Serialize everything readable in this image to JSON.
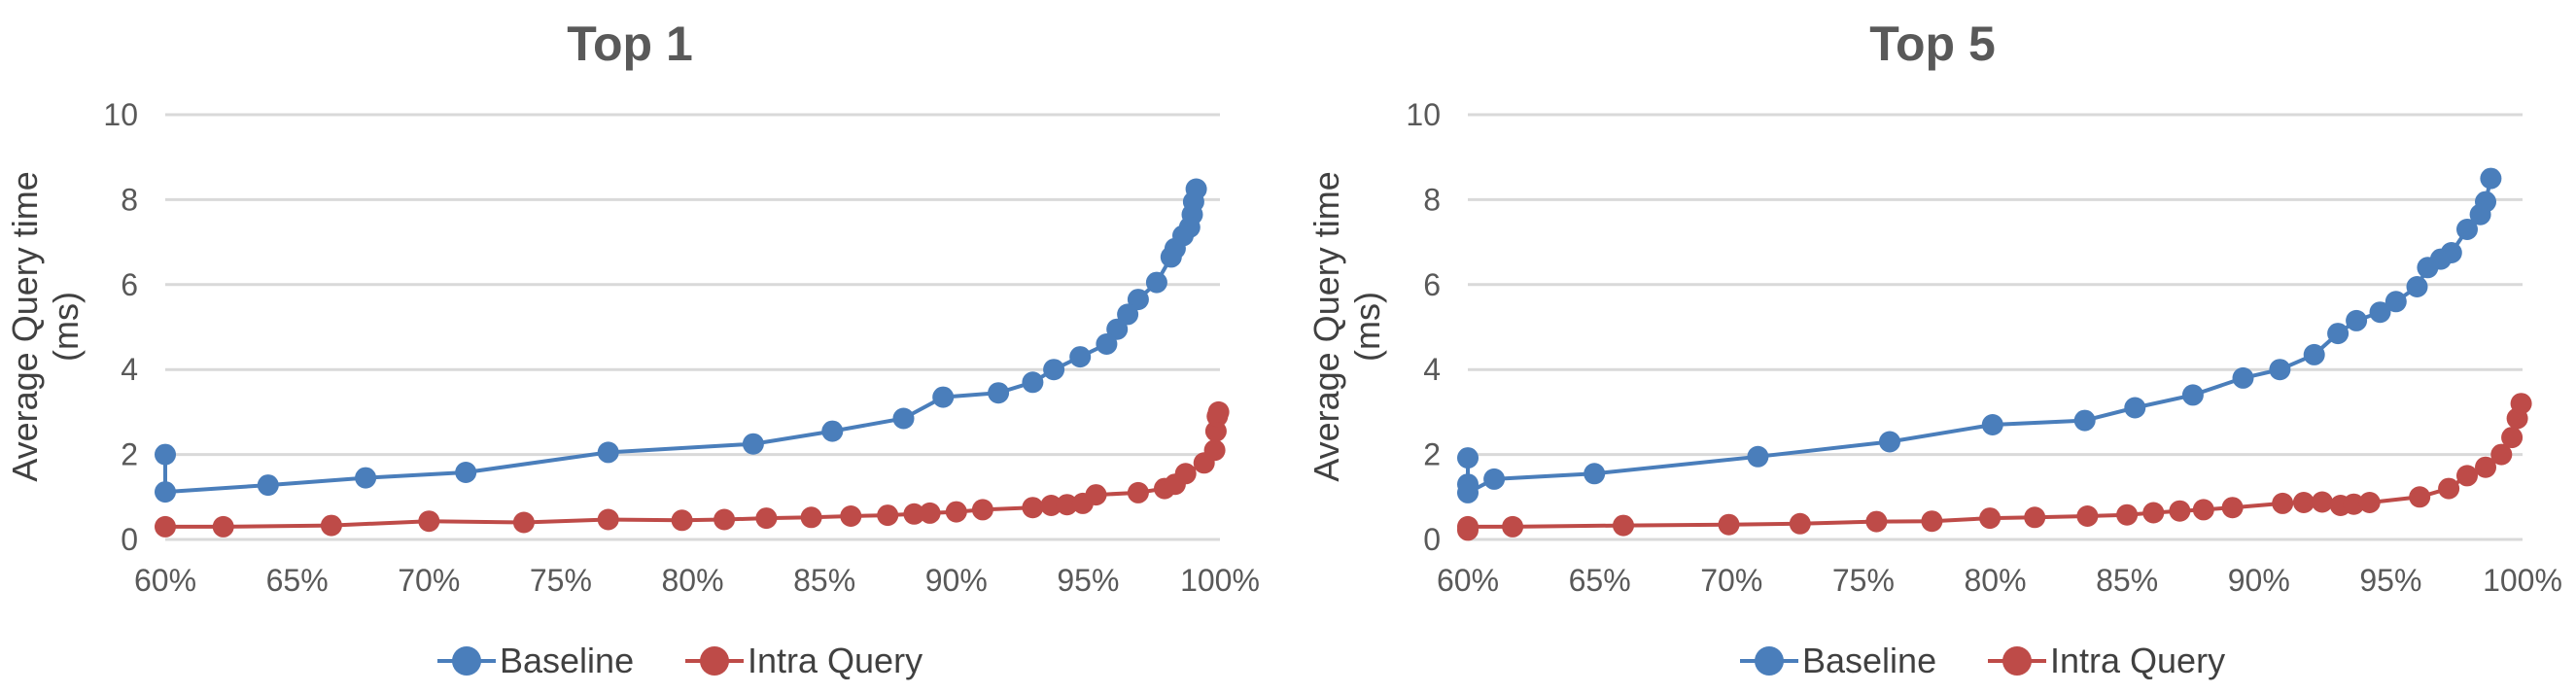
{
  "chart_data": [
    {
      "type": "line",
      "title": "Top 1",
      "xlabel": "",
      "ylabel": "Average Query time\n(ms)",
      "xlim": [
        60,
        100
      ],
      "ylim": [
        0,
        10
      ],
      "x_tick_labels": [
        "60%",
        "65%",
        "70%",
        "75%",
        "80%",
        "85%",
        "90%",
        "95%",
        "100%"
      ],
      "y_tick_labels": [
        "0",
        "2",
        "4",
        "6",
        "8",
        "10"
      ],
      "grid": true,
      "legend_position": "bottom",
      "series": [
        {
          "name": "Baseline",
          "color": "#4a7ebb",
          "points": [
            [
              99.1,
              8.25
            ],
            [
              99.0,
              7.95
            ],
            [
              98.95,
              7.65
            ],
            [
              98.85,
              7.35
            ],
            [
              98.6,
              7.15
            ],
            [
              98.3,
              6.85
            ],
            [
              98.15,
              6.65
            ],
            [
              97.6,
              6.05
            ],
            [
              96.9,
              5.65
            ],
            [
              96.5,
              5.3
            ],
            [
              96.1,
              4.95
            ],
            [
              95.7,
              4.6
            ],
            [
              94.7,
              4.3
            ],
            [
              93.7,
              4.0
            ],
            [
              92.9,
              3.7
            ],
            [
              91.6,
              3.45
            ],
            [
              89.5,
              3.35
            ],
            [
              88.0,
              2.85
            ],
            [
              85.3,
              2.55
            ],
            [
              82.3,
              2.25
            ],
            [
              76.8,
              2.05
            ],
            [
              71.4,
              1.58
            ],
            [
              67.6,
              1.45
            ],
            [
              63.9,
              1.28
            ],
            [
              60.0,
              1.12
            ],
            [
              60.0,
              2.0
            ]
          ]
        },
        {
          "name": "Intra Query",
          "color": "#be4b48",
          "points": [
            [
              60.0,
              0.3
            ],
            [
              62.2,
              0.3
            ],
            [
              66.3,
              0.33
            ],
            [
              70.0,
              0.43
            ],
            [
              73.6,
              0.4
            ],
            [
              76.8,
              0.47
            ],
            [
              79.6,
              0.45
            ],
            [
              81.2,
              0.47
            ],
            [
              82.8,
              0.5
            ],
            [
              84.5,
              0.52
            ],
            [
              86.0,
              0.55
            ],
            [
              87.4,
              0.57
            ],
            [
              88.4,
              0.6
            ],
            [
              89.0,
              0.62
            ],
            [
              90.0,
              0.65
            ],
            [
              91.0,
              0.7
            ],
            [
              92.9,
              0.75
            ],
            [
              93.6,
              0.8
            ],
            [
              94.2,
              0.82
            ],
            [
              94.8,
              0.85
            ],
            [
              95.3,
              1.05
            ],
            [
              96.9,
              1.1
            ],
            [
              97.9,
              1.2
            ],
            [
              98.3,
              1.3
            ],
            [
              98.7,
              1.55
            ],
            [
              99.4,
              1.8
            ],
            [
              99.8,
              2.1
            ],
            [
              99.85,
              2.55
            ],
            [
              99.9,
              2.9
            ],
            [
              99.95,
              3.0
            ]
          ]
        }
      ]
    },
    {
      "type": "line",
      "title": "Top 5",
      "xlabel": "",
      "ylabel": "Average Query time\n(ms)",
      "xlim": [
        60,
        100
      ],
      "ylim": [
        0,
        10
      ],
      "x_tick_labels": [
        "60%",
        "65%",
        "70%",
        "75%",
        "80%",
        "85%",
        "90%",
        "95%",
        "100%"
      ],
      "y_tick_labels": [
        "0",
        "2",
        "4",
        "6",
        "8",
        "10"
      ],
      "grid": true,
      "legend_position": "bottom",
      "series": [
        {
          "name": "Baseline",
          "color": "#4a7ebb",
          "points": [
            [
              98.8,
              8.5
            ],
            [
              98.6,
              7.95
            ],
            [
              98.4,
              7.65
            ],
            [
              97.9,
              7.3
            ],
            [
              97.3,
              6.75
            ],
            [
              96.9,
              6.6
            ],
            [
              96.4,
              6.4
            ],
            [
              96.0,
              5.95
            ],
            [
              95.2,
              5.6
            ],
            [
              94.6,
              5.35
            ],
            [
              93.7,
              5.15
            ],
            [
              93.0,
              4.85
            ],
            [
              92.1,
              4.35
            ],
            [
              90.8,
              4.0
            ],
            [
              89.4,
              3.8
            ],
            [
              87.5,
              3.4
            ],
            [
              85.3,
              3.1
            ],
            [
              83.4,
              2.8
            ],
            [
              79.9,
              2.7
            ],
            [
              76.0,
              2.3
            ],
            [
              71.0,
              1.95
            ],
            [
              64.8,
              1.55
            ],
            [
              61.0,
              1.42
            ],
            [
              60.0,
              1.1
            ],
            [
              60.0,
              1.3
            ],
            [
              60.0,
              1.92
            ]
          ]
        },
        {
          "name": "Intra Query",
          "color": "#be4b48",
          "points": [
            [
              60.0,
              0.22
            ],
            [
              60.0,
              0.3
            ],
            [
              61.7,
              0.3
            ],
            [
              65.9,
              0.33
            ],
            [
              69.9,
              0.35
            ],
            [
              72.6,
              0.37
            ],
            [
              75.5,
              0.42
            ],
            [
              77.6,
              0.43
            ],
            [
              79.8,
              0.5
            ],
            [
              81.5,
              0.52
            ],
            [
              83.5,
              0.55
            ],
            [
              85.0,
              0.58
            ],
            [
              86.0,
              0.63
            ],
            [
              87.0,
              0.67
            ],
            [
              87.9,
              0.7
            ],
            [
              89.0,
              0.75
            ],
            [
              90.9,
              0.85
            ],
            [
              91.7,
              0.87
            ],
            [
              92.4,
              0.88
            ],
            [
              93.1,
              0.8
            ],
            [
              93.6,
              0.83
            ],
            [
              94.2,
              0.87
            ],
            [
              96.1,
              1.0
            ],
            [
              97.2,
              1.2
            ],
            [
              97.9,
              1.5
            ],
            [
              98.6,
              1.7
            ],
            [
              99.2,
              2.0
            ],
            [
              99.6,
              2.4
            ],
            [
              99.8,
              2.85
            ],
            [
              99.95,
              3.2
            ]
          ]
        }
      ]
    }
  ]
}
